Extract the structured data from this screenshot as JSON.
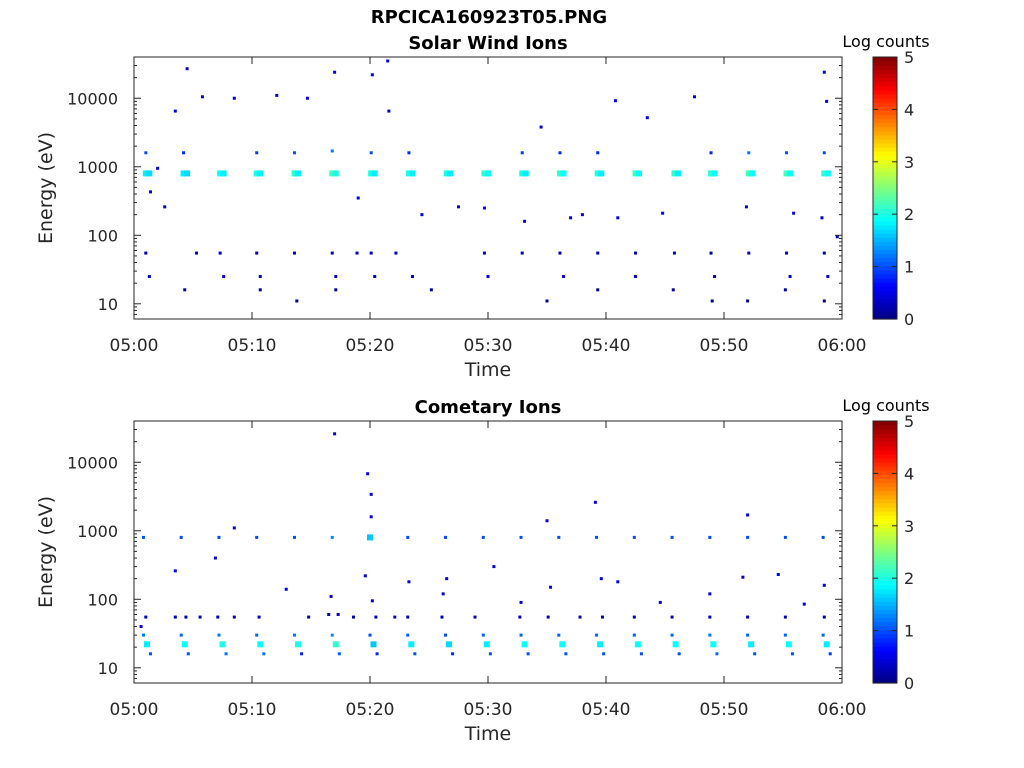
{
  "figure_title": "RPCICA160923T05.PNG",
  "colormap": [
    "#00007f",
    "#0000ff",
    "#007fff",
    "#00ffff",
    "#7fff7f",
    "#ffff00",
    "#ff7f00",
    "#ff0000",
    "#7f0000"
  ],
  "chart_data": [
    {
      "type": "heatmap",
      "title": "Solar Wind Ions",
      "xlabel": "Time",
      "ylabel": "Energy (eV)",
      "yscale": "log",
      "ylim": [
        6,
        40000
      ],
      "y_ticks": [
        10,
        100,
        1000,
        10000
      ],
      "y_ticklabels": [
        "10",
        "100",
        "1000",
        "10000"
      ],
      "x_ticks": [
        0,
        10,
        20,
        30,
        40,
        50,
        60
      ],
      "x_ticklabels": [
        "05:00",
        "05:10",
        "05:20",
        "05:30",
        "05:40",
        "05:50",
        "06:00"
      ],
      "colorbar": {
        "label": "Log counts",
        "range": [
          0,
          5
        ],
        "ticks": [
          "0",
          "1",
          "2",
          "3",
          "4",
          "5"
        ]
      },
      "points": [
        [
          1.0,
          800,
          1.8
        ],
        [
          1.3,
          800,
          1.7
        ],
        [
          4.2,
          800,
          1.8
        ],
        [
          4.5,
          800,
          1.7
        ],
        [
          7.3,
          800,
          1.9
        ],
        [
          7.6,
          800,
          1.8
        ],
        [
          10.4,
          800,
          2.0
        ],
        [
          10.7,
          800,
          1.8
        ],
        [
          13.6,
          800,
          2.1
        ],
        [
          13.9,
          800,
          1.8
        ],
        [
          16.8,
          800,
          2.2
        ],
        [
          17.1,
          800,
          2.0
        ],
        [
          20.1,
          800,
          2.0
        ],
        [
          20.4,
          800,
          1.8
        ],
        [
          23.3,
          800,
          2.0
        ],
        [
          23.6,
          800,
          1.8
        ],
        [
          26.5,
          800,
          2.0
        ],
        [
          26.8,
          800,
          1.8
        ],
        [
          29.7,
          800,
          2.1
        ],
        [
          30.0,
          800,
          1.9
        ],
        [
          32.9,
          800,
          2.0
        ],
        [
          33.2,
          800,
          1.8
        ],
        [
          36.1,
          800,
          2.1
        ],
        [
          36.4,
          800,
          1.9
        ],
        [
          39.3,
          800,
          2.0
        ],
        [
          39.6,
          800,
          1.8
        ],
        [
          42.5,
          800,
          2.2
        ],
        [
          42.8,
          800,
          1.9
        ],
        [
          45.8,
          800,
          2.1
        ],
        [
          46.1,
          800,
          1.8
        ],
        [
          48.9,
          800,
          2.1
        ],
        [
          49.2,
          800,
          1.9
        ],
        [
          52.1,
          800,
          2.2
        ],
        [
          52.4,
          800,
          1.9
        ],
        [
          55.3,
          800,
          2.2
        ],
        [
          55.6,
          800,
          1.9
        ],
        [
          58.5,
          800,
          2.1
        ],
        [
          58.8,
          800,
          1.9
        ],
        [
          1.0,
          1600,
          1.0
        ],
        [
          4.2,
          1600,
          0.8
        ],
        [
          10.4,
          1600,
          0.9
        ],
        [
          13.6,
          1600,
          1.0
        ],
        [
          16.8,
          1700,
          1.2
        ],
        [
          20.1,
          1600,
          1.0
        ],
        [
          23.3,
          1600,
          0.8
        ],
        [
          32.9,
          1600,
          0.9
        ],
        [
          36.1,
          1600,
          0.8
        ],
        [
          39.3,
          1600,
          0.8
        ],
        [
          48.9,
          1600,
          0.8
        ],
        [
          52.1,
          1600,
          1.2
        ],
        [
          55.3,
          1600,
          1.0
        ],
        [
          58.5,
          1600,
          1.0
        ],
        [
          1.0,
          55,
          0.3
        ],
        [
          5.3,
          55,
          0.3
        ],
        [
          7.3,
          55,
          0.3
        ],
        [
          10.4,
          55,
          0.3
        ],
        [
          13.6,
          55,
          0.3
        ],
        [
          16.8,
          55,
          0.3
        ],
        [
          18.9,
          55,
          0.3
        ],
        [
          20.1,
          55,
          0.3
        ],
        [
          22.2,
          55,
          0.3
        ],
        [
          29.7,
          55,
          0.3
        ],
        [
          32.9,
          55,
          0.3
        ],
        [
          36.1,
          55,
          0.3
        ],
        [
          39.3,
          55,
          0.3
        ],
        [
          42.5,
          55,
          0.3
        ],
        [
          45.8,
          55,
          0.3
        ],
        [
          48.9,
          55,
          0.3
        ],
        [
          52.1,
          55,
          0.3
        ],
        [
          55.3,
          55,
          0.3
        ],
        [
          58.5,
          55,
          0.3
        ],
        [
          1.3,
          25,
          0.4
        ],
        [
          7.6,
          25,
          0.4
        ],
        [
          10.7,
          25,
          0.4
        ],
        [
          17.1,
          25,
          0.4
        ],
        [
          20.4,
          25,
          0.4
        ],
        [
          23.6,
          25,
          0.4
        ],
        [
          30.0,
          25,
          0.4
        ],
        [
          36.4,
          25,
          0.4
        ],
        [
          42.5,
          25,
          0.4
        ],
        [
          49.2,
          25,
          0.4
        ],
        [
          55.6,
          25,
          0.4
        ],
        [
          58.8,
          25,
          0.4
        ],
        [
          4.3,
          16,
          0.2
        ],
        [
          10.7,
          16,
          0.2
        ],
        [
          13.8,
          11,
          0.1
        ],
        [
          17.1,
          16,
          0.2
        ],
        [
          25.2,
          16,
          0.2
        ],
        [
          35.0,
          11,
          0.1
        ],
        [
          39.3,
          16,
          0.2
        ],
        [
          45.7,
          16,
          0.2
        ],
        [
          49.0,
          11,
          0.1
        ],
        [
          52.0,
          11,
          0.1
        ],
        [
          55.2,
          16,
          0.2
        ],
        [
          58.5,
          11,
          0.1
        ],
        [
          4.5,
          27000,
          0.5
        ],
        [
          17.0,
          24000,
          0.5
        ],
        [
          20.2,
          22000,
          0.5
        ],
        [
          21.5,
          35000,
          0.5
        ],
        [
          58.5,
          24000,
          0.5
        ],
        [
          3.5,
          6500,
          0.5
        ],
        [
          5.8,
          10500,
          0.5
        ],
        [
          8.5,
          10000,
          0.5
        ],
        [
          12.1,
          11000,
          0.5
        ],
        [
          14.7,
          10000,
          0.5
        ],
        [
          21.6,
          6500,
          0.5
        ],
        [
          40.8,
          9200,
          0.5
        ],
        [
          47.5,
          10500,
          0.5
        ],
        [
          58.7,
          9000,
          0.5
        ],
        [
          29.7,
          250,
          0.5
        ],
        [
          33.1,
          160,
          0.5
        ],
        [
          37.0,
          180,
          0.5
        ],
        [
          41.0,
          180,
          0.5
        ],
        [
          44.8,
          210,
          0.5
        ],
        [
          51.9,
          260,
          0.5
        ],
        [
          55.9,
          210,
          0.5
        ],
        [
          58.3,
          180,
          0.5
        ],
        [
          59.6,
          95,
          0.5
        ],
        [
          2.0,
          950,
          0.5
        ],
        [
          1.4,
          430,
          0.5
        ],
        [
          2.6,
          260,
          0.5
        ],
        [
          19.0,
          350,
          0.5
        ],
        [
          24.4,
          200,
          0.5
        ],
        [
          27.5,
          260,
          0.5
        ],
        [
          34.5,
          3800,
          0.5
        ],
        [
          38.0,
          200,
          0.5
        ],
        [
          43.5,
          5200,
          0.5
        ]
      ]
    },
    {
      "type": "heatmap",
      "title": "Cometary Ions",
      "xlabel": "Time",
      "ylabel": "Energy (eV)",
      "yscale": "log",
      "ylim": [
        6,
        40000
      ],
      "y_ticks": [
        10,
        100,
        1000,
        10000
      ],
      "y_ticklabels": [
        "10",
        "100",
        "1000",
        "10000"
      ],
      "x_ticks": [
        0,
        10,
        20,
        30,
        40,
        50,
        60
      ],
      "x_ticklabels": [
        "05:00",
        "05:10",
        "05:20",
        "05:30",
        "05:40",
        "05:50",
        "06:00"
      ],
      "colorbar": {
        "label": "Log counts",
        "range": [
          0,
          5
        ],
        "ticks": [
          "0",
          "1",
          "2",
          "3",
          "4",
          "5"
        ]
      },
      "points": [
        [
          0.8,
          800,
          1.0
        ],
        [
          4.0,
          800,
          1.0
        ],
        [
          7.2,
          800,
          1.0
        ],
        [
          10.4,
          800,
          1.0
        ],
        [
          13.6,
          800,
          1.0
        ],
        [
          16.8,
          800,
          1.3
        ],
        [
          20.0,
          800,
          1.6
        ],
        [
          23.2,
          800,
          1.0
        ],
        [
          26.4,
          800,
          1.0
        ],
        [
          29.6,
          800,
          1.0
        ],
        [
          32.8,
          800,
          1.0
        ],
        [
          36.0,
          800,
          1.0
        ],
        [
          39.2,
          800,
          1.0
        ],
        [
          42.4,
          800,
          1.0
        ],
        [
          45.6,
          800,
          1.0
        ],
        [
          48.8,
          800,
          1.0
        ],
        [
          52.0,
          800,
          1.0
        ],
        [
          55.2,
          800,
          1.0
        ],
        [
          58.4,
          800,
          1.0
        ],
        [
          0.8,
          30,
          1.2
        ],
        [
          1.1,
          22,
          1.8
        ],
        [
          1.4,
          16,
          1.0
        ],
        [
          0.6,
          40,
          0.5
        ],
        [
          4.0,
          30,
          1.1
        ],
        [
          4.3,
          22,
          1.9
        ],
        [
          4.6,
          16,
          1.0
        ],
        [
          7.2,
          30,
          1.2
        ],
        [
          7.5,
          22,
          2.0
        ],
        [
          7.8,
          16,
          1.2
        ],
        [
          10.4,
          30,
          1.1
        ],
        [
          10.7,
          22,
          1.9
        ],
        [
          11.0,
          16,
          1.2
        ],
        [
          13.6,
          30,
          1.2
        ],
        [
          13.9,
          22,
          2.0
        ],
        [
          14.2,
          16,
          0.8
        ],
        [
          16.8,
          30,
          1.3
        ],
        [
          17.1,
          22,
          2.1
        ],
        [
          17.4,
          16,
          1.1
        ],
        [
          20.0,
          30,
          1.0
        ],
        [
          20.3,
          22,
          1.6
        ],
        [
          20.6,
          16,
          0.8
        ],
        [
          23.2,
          30,
          1.1
        ],
        [
          23.5,
          22,
          1.8
        ],
        [
          23.8,
          16,
          1.0
        ],
        [
          26.4,
          30,
          1.0
        ],
        [
          26.7,
          22,
          1.7
        ],
        [
          27.0,
          16,
          0.8
        ],
        [
          29.6,
          30,
          1.1
        ],
        [
          29.9,
          22,
          1.8
        ],
        [
          30.2,
          16,
          1.0
        ],
        [
          32.8,
          30,
          1.1
        ],
        [
          33.1,
          22,
          1.9
        ],
        [
          33.4,
          16,
          1.0
        ],
        [
          36.0,
          30,
          1.1
        ],
        [
          36.3,
          22,
          1.9
        ],
        [
          36.6,
          16,
          1.0
        ],
        [
          39.2,
          30,
          1.1
        ],
        [
          39.5,
          22,
          1.8
        ],
        [
          39.8,
          16,
          1.0
        ],
        [
          42.4,
          30,
          1.1
        ],
        [
          42.7,
          22,
          1.9
        ],
        [
          43.0,
          16,
          1.0
        ],
        [
          45.6,
          30,
          1.1
        ],
        [
          45.9,
          22,
          1.9
        ],
        [
          46.2,
          16,
          1.0
        ],
        [
          48.8,
          30,
          1.2
        ],
        [
          49.1,
          22,
          1.9
        ],
        [
          49.4,
          16,
          1.1
        ],
        [
          52.0,
          30,
          1.1
        ],
        [
          52.3,
          22,
          1.8
        ],
        [
          52.6,
          16,
          1.0
        ],
        [
          55.2,
          30,
          1.1
        ],
        [
          55.5,
          22,
          1.9
        ],
        [
          55.8,
          16,
          1.0
        ],
        [
          58.4,
          30,
          1.1
        ],
        [
          58.7,
          22,
          1.8
        ],
        [
          59.0,
          16,
          0.9
        ],
        [
          1.0,
          55,
          0.4
        ],
        [
          3.5,
          55,
          0.3
        ],
        [
          4.4,
          55,
          0.3
        ],
        [
          5.6,
          55,
          0.3
        ],
        [
          7.1,
          55,
          0.3
        ],
        [
          8.5,
          55,
          0.3
        ],
        [
          10.6,
          55,
          0.3
        ],
        [
          14.8,
          55,
          0.3
        ],
        [
          16.5,
          60,
          0.3
        ],
        [
          17.3,
          60,
          0.3
        ],
        [
          18.6,
          55,
          0.3
        ],
        [
          20.5,
          55,
          0.3
        ],
        [
          22.1,
          55,
          0.3
        ],
        [
          23.2,
          55,
          0.3
        ],
        [
          26.1,
          55,
          0.3
        ],
        [
          28.9,
          55,
          0.3
        ],
        [
          32.7,
          55,
          0.3
        ],
        [
          35.1,
          55,
          0.3
        ],
        [
          37.8,
          55,
          0.3
        ],
        [
          39.7,
          55,
          0.3
        ],
        [
          42.4,
          55,
          0.3
        ],
        [
          45.6,
          55,
          0.3
        ],
        [
          48.8,
          55,
          0.3
        ],
        [
          52.0,
          55,
          0.3
        ],
        [
          55.2,
          55,
          0.3
        ],
        [
          58.5,
          55,
          0.3
        ],
        [
          17.0,
          26000,
          0.5
        ],
        [
          19.8,
          6800,
          0.5
        ],
        [
          20.1,
          3400,
          0.5
        ],
        [
          20.1,
          1600,
          0.5
        ],
        [
          39.1,
          2600,
          0.5
        ],
        [
          52.0,
          1700,
          0.5
        ],
        [
          35.0,
          1400,
          0.5
        ],
        [
          8.5,
          1100,
          0.5
        ],
        [
          3.5,
          260,
          0.5
        ],
        [
          6.9,
          400,
          0.5
        ],
        [
          12.9,
          140,
          0.5
        ],
        [
          19.6,
          220,
          0.5
        ],
        [
          23.3,
          180,
          0.5
        ],
        [
          26.5,
          200,
          0.5
        ],
        [
          30.5,
          300,
          0.5
        ],
        [
          35.3,
          150,
          0.5
        ],
        [
          39.6,
          200,
          0.5
        ],
        [
          41.0,
          180,
          0.5
        ],
        [
          48.8,
          120,
          0.5
        ],
        [
          51.6,
          210,
          0.5
        ],
        [
          54.6,
          230,
          0.5
        ],
        [
          58.5,
          160,
          0.5
        ],
        [
          44.6,
          90,
          0.5
        ],
        [
          56.8,
          85,
          0.5
        ],
        [
          32.8,
          90,
          0.5
        ],
        [
          26.2,
          120,
          0.5
        ],
        [
          16.7,
          110,
          0.5
        ],
        [
          20.2,
          95,
          0.5
        ]
      ]
    }
  ]
}
